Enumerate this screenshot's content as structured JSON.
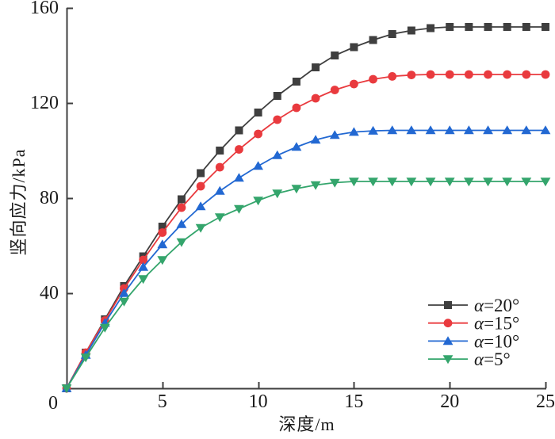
{
  "chart_data": {
    "type": "line",
    "title": "",
    "xlabel": "深度/m",
    "ylabel": "竖向应力/kPa",
    "xlim": [
      0,
      25
    ],
    "ylim": [
      0,
      160
    ],
    "x_ticks": [
      0,
      5,
      10,
      15,
      20,
      25
    ],
    "y_ticks": [
      0,
      40,
      80,
      120,
      160
    ],
    "origin_label": "0",
    "grid": false,
    "legend_position": "lower right",
    "axis_color": "#3f3f3f",
    "x": [
      0,
      1,
      2,
      3,
      4,
      5,
      6,
      7,
      8,
      9,
      10,
      11,
      12,
      13,
      14,
      15,
      16,
      17,
      18,
      19,
      20,
      21,
      22,
      23,
      24,
      25
    ],
    "series": [
      {
        "name": "α=20°",
        "alpha_symbol": "α",
        "suffix": "=20°",
        "color": "#3f3f3f",
        "marker": "square",
        "values": [
          0,
          15,
          29,
          43,
          55.5,
          68,
          79.5,
          90.5,
          100,
          108.5,
          116,
          123,
          129,
          135,
          140,
          143.5,
          146.5,
          149,
          150.5,
          151.5,
          152,
          152,
          152,
          152,
          152,
          152
        ]
      },
      {
        "name": "α=15°",
        "alpha_symbol": "α",
        "suffix": "=15°",
        "color": "#e93a3e",
        "marker": "circle",
        "values": [
          0,
          15,
          28.5,
          42,
          54,
          65.5,
          76,
          85,
          93,
          100.5,
          107,
          113,
          118,
          122,
          125.5,
          128,
          130,
          131.2,
          131.8,
          132,
          132,
          132,
          132,
          132,
          132,
          132
        ]
      },
      {
        "name": "α=10°",
        "alpha_symbol": "α",
        "suffix": "=10°",
        "color": "#2268d2",
        "marker": "triangle-up",
        "values": [
          0,
          14,
          27.5,
          40,
          51,
          60.5,
          69,
          76.5,
          83,
          88.5,
          93.5,
          98,
          101.5,
          104.5,
          106.5,
          107.8,
          108.3,
          108.5,
          108.5,
          108.5,
          108.5,
          108.5,
          108.5,
          108.5,
          108.5,
          108.5
        ]
      },
      {
        "name": "α=5°",
        "alpha_symbol": "α",
        "suffix": "=5°",
        "color": "#34a56c",
        "marker": "triangle-down",
        "values": [
          0,
          13,
          25.5,
          36.5,
          46,
          54,
          61.5,
          67.5,
          72,
          75.5,
          79,
          82,
          84,
          85.5,
          86.5,
          87,
          87,
          87,
          87,
          87,
          87,
          87,
          87,
          87,
          87,
          87
        ]
      }
    ]
  }
}
